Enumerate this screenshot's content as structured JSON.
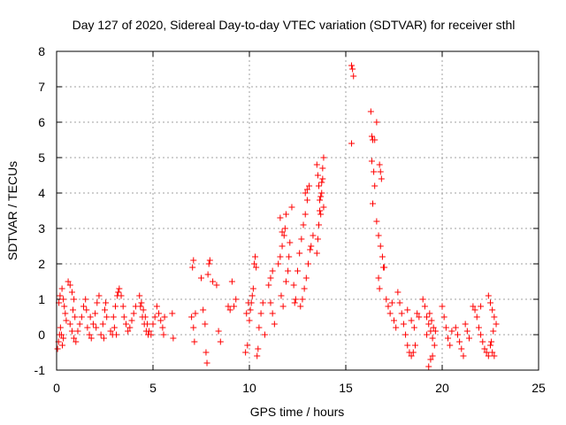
{
  "chart_data": {
    "type": "scatter",
    "title": "Day 127 of 2020, Sidereal Day-to-day VTEC variation (SDTVAR) for receiver sthl",
    "xlabel": "GPS time / hours",
    "ylabel": "SDTVAR / TECUs",
    "xlim": [
      0,
      25
    ],
    "ylim": [
      -1,
      8
    ],
    "xticks": [
      0,
      5,
      10,
      15,
      20,
      25
    ],
    "yticks": [
      -1,
      0,
      1,
      2,
      3,
      4,
      5,
      6,
      7,
      8
    ],
    "grid": true,
    "marker": "+",
    "color": "#ff0000",
    "series": [
      {
        "name": "sthl",
        "points": [
          [
            0.05,
            -0.4
          ],
          [
            0.1,
            -0.2
          ],
          [
            0.15,
            0.0
          ],
          [
            0.2,
            0.2
          ],
          [
            0.25,
            0.0
          ],
          [
            0.3,
            -0.3
          ],
          [
            0.35,
            -0.1
          ],
          [
            0.12,
            0.9
          ],
          [
            0.18,
            1.1
          ],
          [
            0.28,
            1.3
          ],
          [
            0.35,
            1.0
          ],
          [
            0.4,
            0.8
          ],
          [
            0.45,
            0.6
          ],
          [
            0.5,
            0.4
          ],
          [
            0.6,
            1.5
          ],
          [
            0.7,
            1.4
          ],
          [
            0.8,
            1.2
          ],
          [
            0.9,
            1.0
          ],
          [
            0.85,
            0.7
          ],
          [
            0.95,
            0.5
          ],
          [
            0.7,
            0.3
          ],
          [
            0.8,
            0.1
          ],
          [
            0.9,
            -0.1
          ],
          [
            1.0,
            -0.2
          ],
          [
            1.1,
            0.1
          ],
          [
            1.2,
            0.3
          ],
          [
            1.3,
            0.5
          ],
          [
            1.4,
            0.8
          ],
          [
            1.5,
            1.0
          ],
          [
            1.55,
            0.7
          ],
          [
            1.6,
            0.2
          ],
          [
            1.7,
            0.0
          ],
          [
            1.8,
            -0.1
          ],
          [
            1.9,
            0.3
          ],
          [
            2.0,
            0.6
          ],
          [
            2.1,
            0.9
          ],
          [
            2.2,
            1.1
          ],
          [
            1.75,
            0.5
          ],
          [
            2.05,
            0.2
          ],
          [
            2.3,
            0.0
          ],
          [
            2.4,
            0.3
          ],
          [
            2.5,
            0.7
          ],
          [
            2.6,
            0.5
          ],
          [
            2.45,
            -0.1
          ],
          [
            2.55,
            0.9
          ],
          [
            2.8,
            0.1
          ],
          [
            2.9,
            0.0
          ],
          [
            3.0,
            0.2
          ],
          [
            3.1,
            0.0
          ],
          [
            2.95,
            0.5
          ],
          [
            3.05,
            0.8
          ],
          [
            3.15,
            1.1
          ],
          [
            3.25,
            1.3
          ],
          [
            3.35,
            1.1
          ],
          [
            3.45,
            0.8
          ],
          [
            3.5,
            0.5
          ],
          [
            3.6,
            0.3
          ],
          [
            3.7,
            0.1
          ],
          [
            3.8,
            0.2
          ],
          [
            3.9,
            0.4
          ],
          [
            4.0,
            0.6
          ],
          [
            4.1,
            0.8
          ],
          [
            3.2,
            1.2
          ],
          [
            4.3,
            1.1
          ],
          [
            4.4,
            0.9
          ],
          [
            4.5,
            0.7
          ],
          [
            4.6,
            0.5
          ],
          [
            4.7,
            0.3
          ],
          [
            4.8,
            0.1
          ],
          [
            4.9,
            0.0
          ],
          [
            4.35,
            0.8
          ],
          [
            4.45,
            0.5
          ],
          [
            4.55,
            0.3
          ],
          [
            4.65,
            0.1
          ],
          [
            4.75,
            0.0
          ],
          [
            5.0,
            0.3
          ],
          [
            5.1,
            0.5
          ],
          [
            5.2,
            0.8
          ],
          [
            5.3,
            0.6
          ],
          [
            5.4,
            0.4
          ],
          [
            5.5,
            0.2
          ],
          [
            5.55,
            0.0
          ],
          [
            5.6,
            0.5
          ],
          [
            6.0,
            0.6
          ],
          [
            6.05,
            -0.1
          ],
          [
            7.0,
            0.5
          ],
          [
            7.1,
            0.2
          ],
          [
            7.15,
            -0.2
          ],
          [
            7.2,
            0.6
          ],
          [
            7.05,
            1.9
          ],
          [
            7.1,
            2.1
          ],
          [
            7.5,
            1.6
          ],
          [
            7.6,
            0.7
          ],
          [
            7.7,
            0.3
          ],
          [
            7.75,
            -0.5
          ],
          [
            7.8,
            -0.8
          ],
          [
            7.85,
            1.7
          ],
          [
            7.9,
            2.0
          ],
          [
            7.95,
            2.1
          ],
          [
            8.1,
            1.5
          ],
          [
            8.3,
            1.4
          ],
          [
            8.4,
            0.1
          ],
          [
            8.5,
            -0.2
          ],
          [
            8.9,
            0.8
          ],
          [
            9.0,
            0.7
          ],
          [
            9.1,
            1.5
          ],
          [
            9.2,
            0.8
          ],
          [
            9.3,
            1.0
          ],
          [
            9.8,
            -0.5
          ],
          [
            9.9,
            -0.3
          ],
          [
            10.0,
            0.4
          ],
          [
            10.05,
            0.7
          ],
          [
            10.1,
            0.9
          ],
          [
            10.15,
            1.1
          ],
          [
            10.2,
            1.3
          ],
          [
            9.85,
            0.6
          ],
          [
            9.95,
            0.9
          ],
          [
            10.25,
            2.0
          ],
          [
            10.3,
            2.2
          ],
          [
            10.35,
            1.9
          ],
          [
            10.4,
            -0.6
          ],
          [
            10.45,
            -0.4
          ],
          [
            10.5,
            0.2
          ],
          [
            10.6,
            0.6
          ],
          [
            10.7,
            0.9
          ],
          [
            10.8,
            0.0
          ],
          [
            11.0,
            1.4
          ],
          [
            11.1,
            1.6
          ],
          [
            11.2,
            1.8
          ],
          [
            11.1,
            0.9
          ],
          [
            11.2,
            0.6
          ],
          [
            11.3,
            0.3
          ],
          [
            11.5,
            2.0
          ],
          [
            11.6,
            2.2
          ],
          [
            11.7,
            2.5
          ],
          [
            11.65,
            1.1
          ],
          [
            11.75,
            0.8
          ],
          [
            11.8,
            2.8
          ],
          [
            11.85,
            3.0
          ],
          [
            11.9,
            3.4
          ],
          [
            11.6,
            3.3
          ],
          [
            11.7,
            2.9
          ],
          [
            11.9,
            1.5
          ],
          [
            12.0,
            1.8
          ],
          [
            12.05,
            2.2
          ],
          [
            12.1,
            2.6
          ],
          [
            12.2,
            3.6
          ],
          [
            12.3,
            1.4
          ],
          [
            12.35,
            0.9
          ],
          [
            12.4,
            1.0
          ],
          [
            12.5,
            1.8
          ],
          [
            12.6,
            2.3
          ],
          [
            12.7,
            2.7
          ],
          [
            12.8,
            3.1
          ],
          [
            12.9,
            3.4
          ],
          [
            13.0,
            3.8
          ],
          [
            13.1,
            4.2
          ],
          [
            12.65,
            0.8
          ],
          [
            12.75,
            1.0
          ],
          [
            12.85,
            1.3
          ],
          [
            12.95,
            1.6
          ],
          [
            13.05,
            2.0
          ],
          [
            13.15,
            2.4
          ],
          [
            12.9,
            4.0
          ],
          [
            13.0,
            4.1
          ],
          [
            13.2,
            2.5
          ],
          [
            13.3,
            2.8
          ],
          [
            13.5,
            2.3
          ],
          [
            13.55,
            2.7
          ],
          [
            13.6,
            3.1
          ],
          [
            13.65,
            3.5
          ],
          [
            13.7,
            3.9
          ],
          [
            13.75,
            4.3
          ],
          [
            13.8,
            4.7
          ],
          [
            13.85,
            5.0
          ],
          [
            13.5,
            4.8
          ],
          [
            13.55,
            4.5
          ],
          [
            13.6,
            4.2
          ],
          [
            13.65,
            3.8
          ],
          [
            13.7,
            3.4
          ],
          [
            13.75,
            4.0
          ],
          [
            13.8,
            4.4
          ],
          [
            13.85,
            3.6
          ],
          [
            15.3,
            7.6
          ],
          [
            15.35,
            7.5
          ],
          [
            15.4,
            7.3
          ],
          [
            15.3,
            5.4
          ],
          [
            16.3,
            6.3
          ],
          [
            16.35,
            5.6
          ],
          [
            16.4,
            5.5
          ],
          [
            16.5,
            5.5
          ],
          [
            16.6,
            6.0
          ],
          [
            16.35,
            4.9
          ],
          [
            16.45,
            4.6
          ],
          [
            16.4,
            3.7
          ],
          [
            16.5,
            4.2
          ],
          [
            16.6,
            3.2
          ],
          [
            16.7,
            2.8
          ],
          [
            16.8,
            2.5
          ],
          [
            16.75,
            4.8
          ],
          [
            16.8,
            4.6
          ],
          [
            16.85,
            4.4
          ],
          [
            16.9,
            2.2
          ],
          [
            16.95,
            1.9
          ],
          [
            16.7,
            1.6
          ],
          [
            16.75,
            1.3
          ],
          [
            17.0,
            1.9
          ],
          [
            17.1,
            1.0
          ],
          [
            17.2,
            0.8
          ],
          [
            17.3,
            0.6
          ],
          [
            17.4,
            0.9
          ],
          [
            17.5,
            0.4
          ],
          [
            17.6,
            0.2
          ],
          [
            17.7,
            1.2
          ],
          [
            17.8,
            0.9
          ],
          [
            17.9,
            0.6
          ],
          [
            18.0,
            0.3
          ],
          [
            18.1,
            0.0
          ],
          [
            18.2,
            -0.3
          ],
          [
            18.3,
            -0.5
          ],
          [
            18.4,
            -0.6
          ],
          [
            18.5,
            -0.5
          ],
          [
            18.6,
            -0.3
          ],
          [
            18.7,
            0.6
          ],
          [
            18.8,
            0.5
          ],
          [
            18.2,
            0.7
          ],
          [
            18.4,
            0.4
          ],
          [
            18.55,
            0.2
          ],
          [
            19.0,
            1.0
          ],
          [
            19.1,
            0.8
          ],
          [
            19.2,
            0.5
          ],
          [
            19.3,
            0.3
          ],
          [
            19.4,
            0.1
          ],
          [
            19.5,
            -0.1
          ],
          [
            19.6,
            -0.3
          ],
          [
            19.3,
            -0.9
          ],
          [
            19.4,
            -0.7
          ],
          [
            19.5,
            -0.6
          ],
          [
            19.2,
            0.0
          ],
          [
            19.35,
            0.6
          ],
          [
            19.45,
            0.4
          ],
          [
            19.55,
            0.2
          ],
          [
            19.65,
            0.1
          ],
          [
            20.0,
            0.8
          ],
          [
            20.1,
            0.5
          ],
          [
            20.2,
            0.2
          ],
          [
            20.3,
            -0.1
          ],
          [
            20.4,
            -0.3
          ],
          [
            20.5,
            0.1
          ],
          [
            20.7,
            0.2
          ],
          [
            20.8,
            0.0
          ],
          [
            20.9,
            -0.2
          ],
          [
            21.0,
            -0.4
          ],
          [
            21.1,
            -0.6
          ],
          [
            21.2,
            0.3
          ],
          [
            21.3,
            0.1
          ],
          [
            21.4,
            -0.1
          ],
          [
            21.6,
            0.8
          ],
          [
            21.7,
            0.7
          ],
          [
            21.8,
            0.5
          ],
          [
            21.9,
            0.2
          ],
          [
            22.0,
            0.0
          ],
          [
            22.1,
            -0.2
          ],
          [
            22.2,
            -0.4
          ],
          [
            22.3,
            -0.5
          ],
          [
            22.0,
            0.8
          ],
          [
            22.4,
            1.1
          ],
          [
            22.5,
            0.9
          ],
          [
            22.6,
            0.7
          ],
          [
            22.7,
            0.5
          ],
          [
            22.8,
            0.3
          ],
          [
            22.5,
            -0.3
          ],
          [
            22.6,
            -0.5
          ],
          [
            22.7,
            -0.6
          ],
          [
            22.4,
            -0.6
          ],
          [
            22.55,
            -0.2
          ],
          [
            22.65,
            0.1
          ]
        ]
      }
    ]
  }
}
